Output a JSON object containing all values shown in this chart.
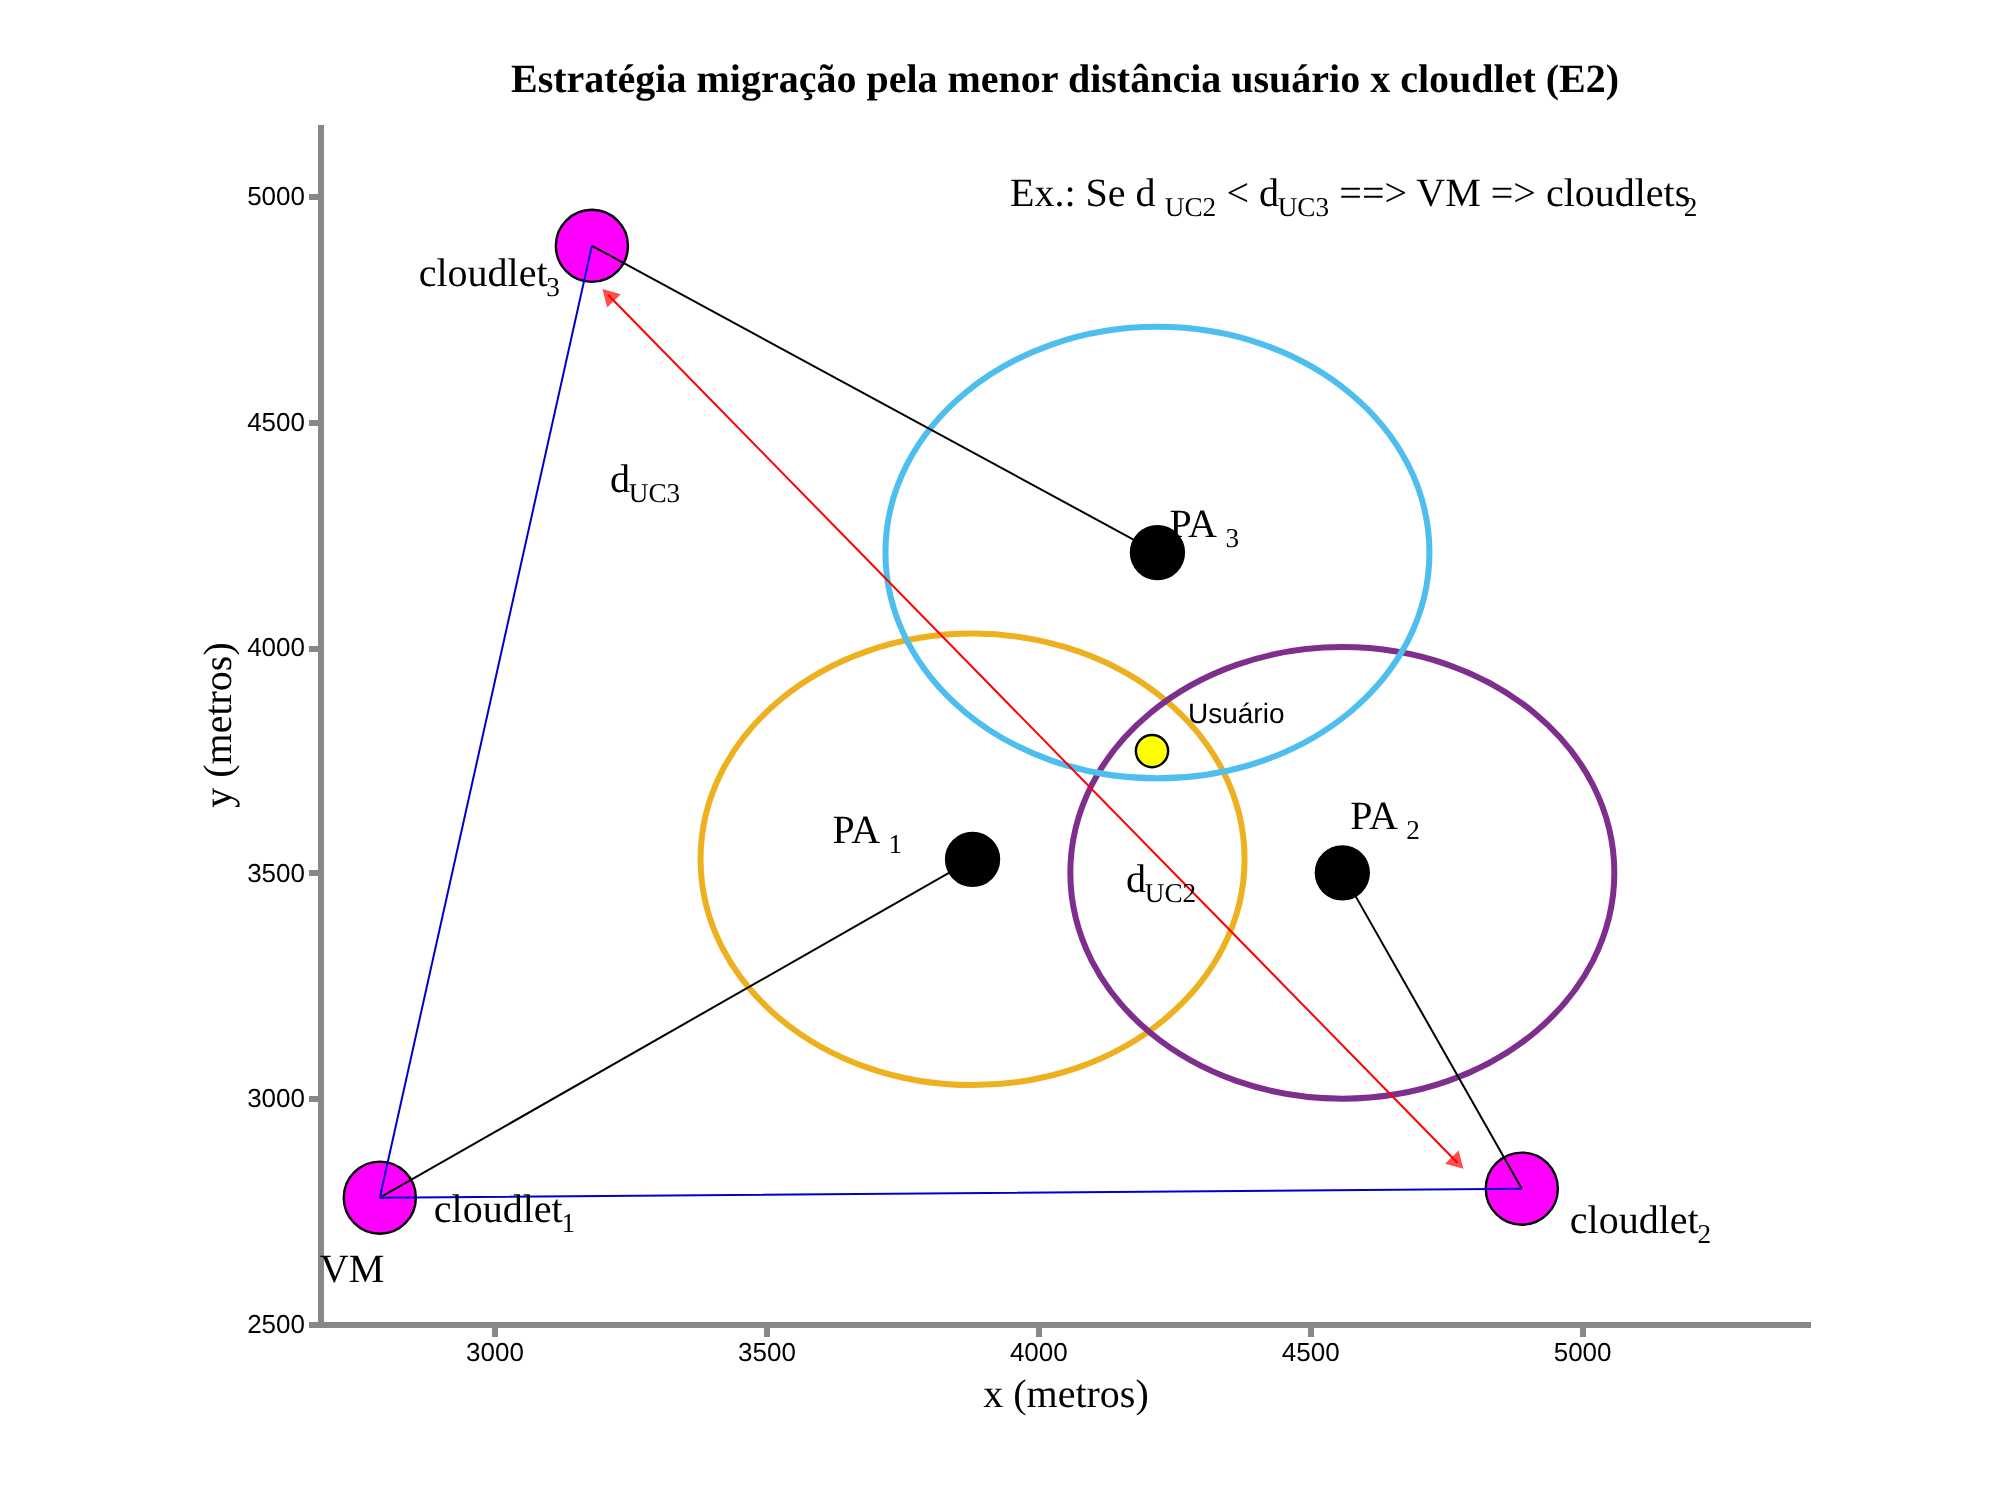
{
  "chart_data": {
    "type": "scatter",
    "title": "Estratégia migração pela menor distância usuário x cloudlet (E2)",
    "xlabel": "x (metros)",
    "ylabel": "y (metros)",
    "xlim": [
      2680,
      5420
    ],
    "ylim": [
      2500,
      5160
    ],
    "xticks": [
      3000,
      3500,
      4000,
      4500,
      5000
    ],
    "yticks": [
      2500,
      3000,
      3500,
      4000,
      4500,
      5000
    ],
    "grid": false,
    "series": [
      {
        "type": "line",
        "color": "#0000cc",
        "x": [
          3180,
          2790,
          4890
        ],
        "values": [
          4890,
          2780,
          2800
        ]
      },
      {
        "type": "line",
        "color": "#000000",
        "x": [
          2790,
          3880
        ],
        "values": [
          2780,
          3530
        ]
      },
      {
        "type": "line",
        "color": "#000000",
        "x": [
          3180,
          4220
        ],
        "values": [
          4890,
          4210
        ]
      },
      {
        "type": "line",
        "color": "#000000",
        "x": [
          4890,
          4560
        ],
        "values": [
          2800,
          3500
        ]
      },
      {
        "type": "line",
        "color": "#ff0000",
        "marker": "triangle",
        "x": [
          3210,
          4772
        ],
        "values": [
          4781,
          2857
        ]
      },
      {
        "color": "#ff00ff",
        "marker": "circle",
        "x": [
          2790,
          4890,
          3180
        ],
        "values": [
          2780,
          2800,
          4890
        ]
      },
      {
        "color": "#000000",
        "marker": "circle",
        "x": [
          3880,
          4560,
          4220
        ],
        "values": [
          3530,
          3500,
          4210
        ]
      },
      {
        "color": "#ffff00",
        "marker": "circle",
        "x": [
          4210
        ],
        "values": [
          3770
        ]
      }
    ],
    "annotations": [
      "Ex.: Se d$_{UC2}$ < d$_{UC3}$ ==> VM => cloudlets$_{2}$",
      {
        "text": "cloudlet$_{3}$",
        "x": 3180,
        "y": 4890
      },
      {
        "text": "cloudlet$_{1}$",
        "x": 2790,
        "y": 2780
      },
      {
        "text": "VM",
        "x": 2790,
        "y": 2780
      },
      {
        "text": "cloudlet$_{2}$",
        "x": 4890,
        "y": 2800
      },
      {
        "text": "PA$_{1}$",
        "x": 3880,
        "y": 3530
      },
      {
        "text": "PA$_{2}$",
        "x": 4560,
        "y": 3500
      },
      {
        "text": "PA$_{3}$",
        "x": 4220,
        "y": 4210
      },
      {
        "text": "Usuário",
        "x": 4210,
        "y": 3770
      },
      "d$_{UC3}$",
      "d$_{UC2}$"
    ]
  }
}
